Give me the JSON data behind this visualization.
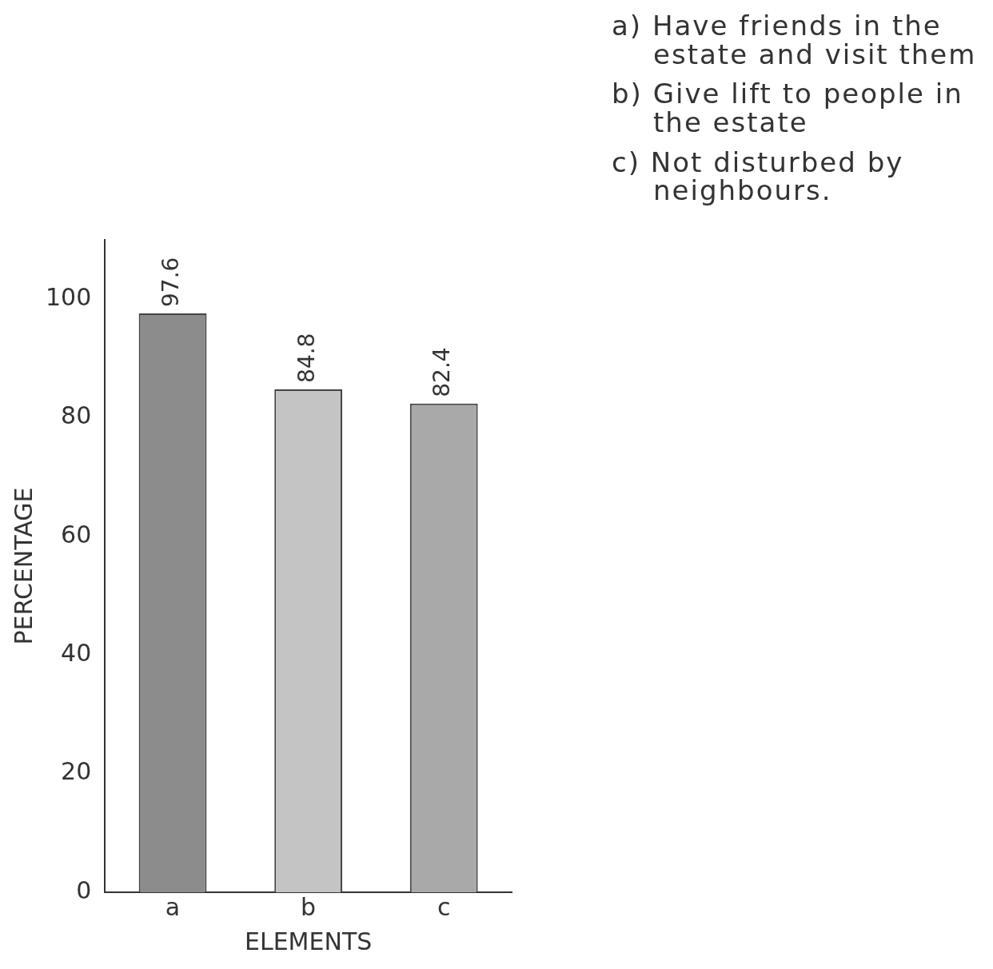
{
  "chart_data": {
    "type": "bar",
    "xlabel": "ELEMENTS",
    "ylabel": "PERCENTAGE",
    "categories": [
      "a",
      "b",
      "c"
    ],
    "values": [
      97.6,
      84.8,
      82.4
    ],
    "colors": [
      "#8c8c8c",
      "#c4c4c4",
      "#a9a9a9"
    ],
    "ylim": [
      0,
      110
    ],
    "yticks": [
      0,
      20,
      40,
      60,
      80,
      100
    ],
    "data_labels": true,
    "grid": false,
    "legend": false,
    "annotations": [
      "a) Have friends in the estate and visit them",
      "b) Give lift to people in the estate",
      "c) Not disturbed by neighbours."
    ]
  }
}
